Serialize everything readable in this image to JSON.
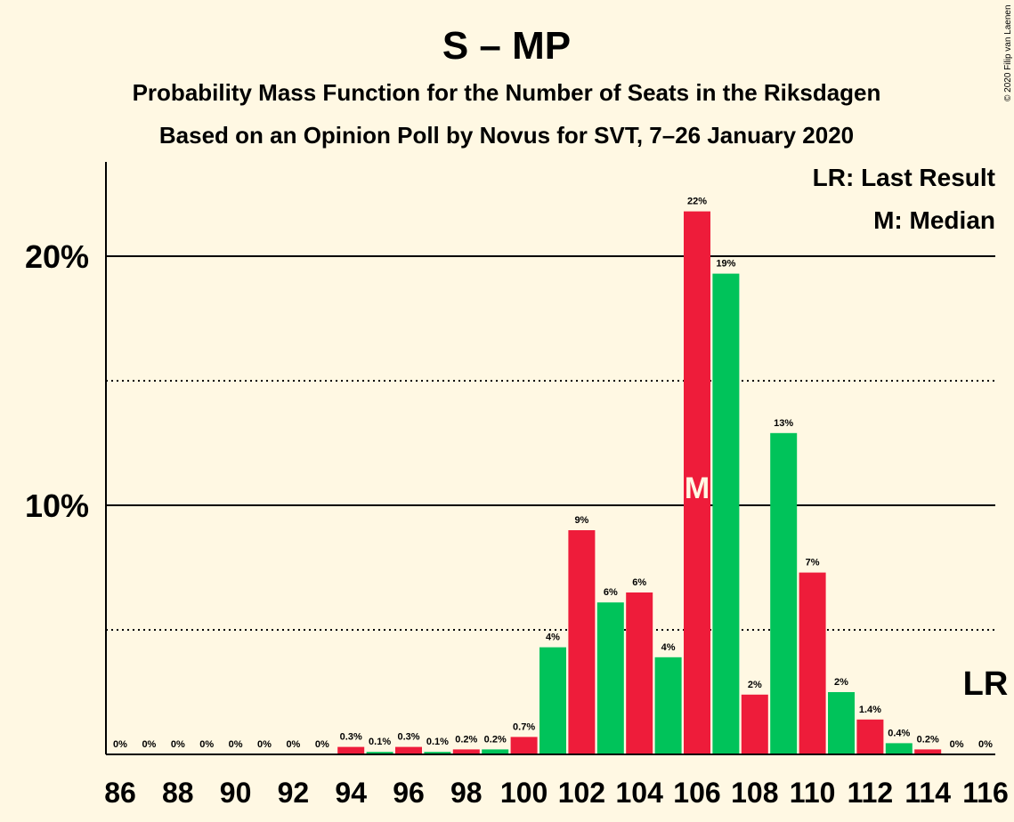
{
  "chart_data": {
    "type": "bar",
    "title": "S – MP",
    "subtitle_lines": [
      "Probability Mass Function for the Number of Seats in the Riksdagen",
      "Based on an Opinion Poll by Novus for SVT, 7–26 January 2020"
    ],
    "copyright": "© 2020 Filip van Laenen",
    "legend": [
      "LR: Last Result",
      "M: Median"
    ],
    "x": [
      86,
      87,
      88,
      89,
      90,
      91,
      92,
      93,
      94,
      95,
      96,
      97,
      98,
      99,
      100,
      101,
      102,
      103,
      104,
      105,
      106,
      107,
      108,
      109,
      110,
      111,
      112,
      113,
      114,
      115,
      116
    ],
    "values": [
      0,
      0,
      0,
      0,
      0,
      0,
      0,
      0,
      0.3,
      0.1,
      0.3,
      0.1,
      0.2,
      0.2,
      0.7,
      4.3,
      9.0,
      6.1,
      6.5,
      3.9,
      21.8,
      19.3,
      2.4,
      12.9,
      7.3,
      2.5,
      1.4,
      0.45,
      0.2,
      0,
      0
    ],
    "value_labels": [
      "0%",
      "0%",
      "0%",
      "0%",
      "0%",
      "0%",
      "0%",
      "0%",
      "0.3%",
      "0.1%",
      "0.3%",
      "0.1%",
      "0.2%",
      "0.2%",
      "0.7%",
      "4%",
      "9%",
      "6%",
      "6%",
      "4%",
      "22%",
      "19%",
      "2%",
      "13%",
      "7%",
      "2%",
      "1.4%",
      "0.4%",
      "0.2%",
      "0%",
      "0%"
    ],
    "x_tick_labels": [
      "86",
      "88",
      "90",
      "92",
      "94",
      "96",
      "98",
      "100",
      "102",
      "104",
      "106",
      "108",
      "110",
      "112",
      "114",
      "116"
    ],
    "y_tick_labels": [
      "10%",
      "20%"
    ],
    "y_solid_gridlines": [
      10,
      20
    ],
    "y_dotted_gridlines": [
      5,
      15
    ],
    "ylim": [
      0,
      23.7
    ],
    "colors": {
      "red": "#EE1C3A",
      "green": "#00C35A",
      "background": "#FFF8E3"
    },
    "color_pattern": "alternating red/green starting red at 86",
    "median_seat": 106,
    "median_marker": "M",
    "last_result_seat": 116,
    "last_result_marker": "LR"
  }
}
